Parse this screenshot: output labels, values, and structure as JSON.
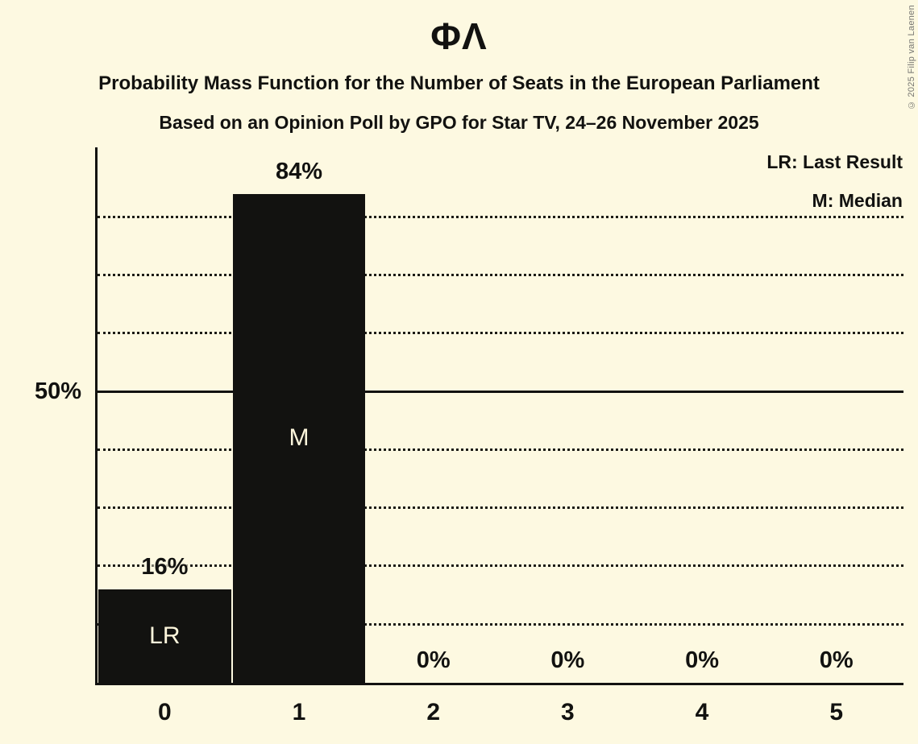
{
  "title": "ΦΛ",
  "subtitle": "Probability Mass Function for the Number of Seats in the European Parliament",
  "poll_details": "Based on an Opinion Poll by GPO for Star TV, 24–26 November 2025",
  "legend": {
    "lr": "LR: Last Result",
    "m": "M: Median"
  },
  "copyright": "© 2025 Filip van Laenen",
  "y_axis": {
    "tick_label": "50%"
  },
  "chart_data": {
    "type": "bar",
    "title": "ΦΛ",
    "subtitle": "Probability Mass Function for the Number of Seats in the European Parliament",
    "annotation": "Based on an Opinion Poll by GPO for Star TV, 24–26 November 2025",
    "categories": [
      "0",
      "1",
      "2",
      "3",
      "4",
      "5"
    ],
    "values": [
      16,
      84,
      0,
      0,
      0,
      0
    ],
    "value_labels": [
      "16%",
      "84%",
      "0%",
      "0%",
      "0%",
      "0%"
    ],
    "bar_annotations": [
      "LR",
      "M",
      "",
      "",
      "",
      ""
    ],
    "xlabel": "",
    "ylabel": "",
    "ylim": [
      0,
      92
    ],
    "yticks": [
      {
        "value": 50,
        "label": "50%"
      }
    ],
    "gridlines": {
      "dotted_at": [
        10,
        20,
        30,
        40,
        60,
        70,
        80
      ],
      "solid_at": [
        50
      ]
    },
    "legend_entries": [
      "LR: Last Result",
      "M: Median"
    ],
    "legend_position": "top-right",
    "grid": true,
    "colors": {
      "background": "#FDF9E1",
      "bar": "#121210",
      "text": "#121210",
      "bar_annotation_text": "#FDF6DC",
      "copyright_text": "#767672"
    }
  }
}
